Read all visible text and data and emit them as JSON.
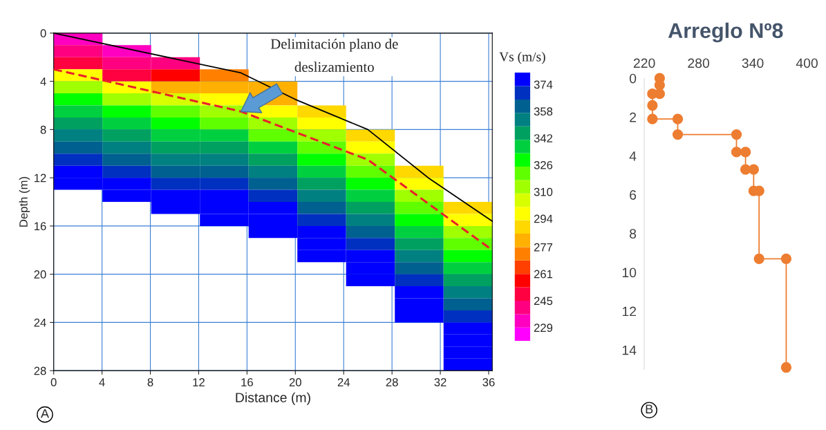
{
  "chart_data": [
    {
      "type": "heatmap",
      "xlabel": "Distance (m)",
      "ylabel": "Depth (m)",
      "clabel": "Vs (m/s)",
      "cells": [
        [
          233,
          null,
          null,
          null,
          null,
          null,
          null,
          null,
          null
        ],
        [
          241,
          233,
          null,
          null,
          null,
          null,
          null,
          null,
          null
        ],
        [
          249,
          241,
          241,
          null,
          null,
          null,
          null,
          null,
          null
        ],
        [
          297,
          249,
          257,
          273,
          null,
          null,
          null,
          null,
          null
        ],
        [
          313,
          297,
          281,
          281,
          281,
          null,
          null,
          null,
          null
        ],
        [
          329,
          313,
          305,
          297,
          281,
          null,
          null,
          null,
          null
        ],
        [
          337,
          329,
          321,
          313,
          297,
          289,
          null,
          null,
          null
        ],
        [
          345,
          337,
          329,
          321,
          313,
          297,
          null,
          null,
          null
        ],
        [
          353,
          345,
          337,
          337,
          321,
          313,
          289,
          null,
          null
        ],
        [
          361,
          353,
          345,
          345,
          337,
          321,
          297,
          null,
          null
        ],
        [
          369,
          361,
          353,
          353,
          345,
          329,
          313,
          null,
          null
        ],
        [
          377,
          369,
          361,
          361,
          353,
          337,
          321,
          289,
          null
        ],
        [
          377,
          377,
          369,
          369,
          361,
          345,
          329,
          297,
          null
        ],
        [
          null,
          377,
          377,
          377,
          369,
          353,
          337,
          313,
          null
        ],
        [
          null,
          null,
          377,
          377,
          377,
          361,
          345,
          321,
          289
        ],
        [
          null,
          null,
          null,
          377,
          377,
          369,
          353,
          329,
          297
        ],
        [
          null,
          null,
          null,
          null,
          377,
          377,
          361,
          337,
          313
        ],
        [
          null,
          null,
          null,
          null,
          null,
          377,
          369,
          345,
          321
        ],
        [
          null,
          null,
          null,
          null,
          null,
          377,
          377,
          353,
          329
        ],
        [
          null,
          null,
          null,
          null,
          null,
          null,
          377,
          361,
          337
        ],
        [
          null,
          null,
          null,
          null,
          null,
          null,
          377,
          369,
          345
        ],
        [
          null,
          null,
          null,
          null,
          null,
          null,
          null,
          377,
          353
        ],
        [
          null,
          null,
          null,
          null,
          null,
          null,
          null,
          377,
          361
        ],
        [
          null,
          null,
          null,
          null,
          null,
          null,
          null,
          377,
          369
        ],
        [
          null,
          null,
          null,
          null,
          null,
          null,
          null,
          null,
          377
        ],
        [
          null,
          null,
          null,
          null,
          null,
          null,
          null,
          null,
          377
        ],
        [
          null,
          null,
          null,
          null,
          null,
          null,
          null,
          null,
          377
        ],
        [
          null,
          null,
          null,
          null,
          null,
          null,
          null,
          null,
          377
        ]
      ],
      "colors": [
        "#ff00ff",
        "#ff00c0",
        "#ff0080",
        "#ff0040",
        "#ff0000",
        "#ff4000",
        "#ff8000",
        "#ffb000",
        "#ffd800",
        "#ffff00",
        "#d8ff00",
        "#a0ff00",
        "#60ff00",
        "#00ff00",
        "#00d040",
        "#00a060",
        "#008080",
        "#006090",
        "#0030c0",
        "#0000ff"
      ],
      "clim": [
        221,
        381
      ],
      "cticks": [
        229,
        245,
        261,
        277,
        294,
        310,
        326,
        342,
        358,
        374
      ],
      "series": [
        {
          "type": "line",
          "color": "#000000",
          "line_style": "solid",
          "x": [
            0,
            15.5,
            20,
            26,
            31,
            36.3
          ],
          "values": [
            0,
            3.3,
            5.5,
            8,
            12,
            15.6
          ]
        },
        {
          "type": "line",
          "color": "#e8202a",
          "line_style": "dashed",
          "x": [
            0,
            15.5,
            26,
            36.3
          ],
          "values": [
            3,
            6.5,
            10.5,
            18
          ]
        }
      ],
      "xlim": [
        0,
        36.3
      ],
      "ylim": [
        28,
        0
      ],
      "xticks": [
        0,
        4,
        8,
        12,
        16,
        20,
        24,
        28,
        32,
        36
      ],
      "yticks": [
        0,
        4,
        8,
        12,
        16,
        20,
        24,
        28
      ],
      "grid": true,
      "annotations": [
        "Delimitación plano de\ndeslizamiento",
        "A"
      ]
    },
    {
      "type": "line",
      "title": "Arreglo Nº8",
      "series": [
        {
          "color": "#ed7d31",
          "x": [
            237,
            237,
            237,
            229,
            229,
            229,
            257,
            257,
            322,
            322,
            332,
            332,
            341,
            341,
            347,
            347,
            377,
            377
          ],
          "values": [
            0,
            0.35,
            0.8,
            0.8,
            1.4,
            2.1,
            2.1,
            2.9,
            2.9,
            3.8,
            3.8,
            4.7,
            4.7,
            5.8,
            5.8,
            9.3,
            9.3,
            14.9
          ]
        }
      ],
      "marker": "circle",
      "line_style": "solid",
      "xlim": [
        220,
        400
      ],
      "xticks": [
        220,
        280,
        340,
        400
      ],
      "ylim": [
        15,
        0
      ],
      "yticks": [
        0,
        2,
        4,
        6,
        8,
        10,
        12,
        14
      ],
      "annotations": [
        "B"
      ]
    }
  ]
}
